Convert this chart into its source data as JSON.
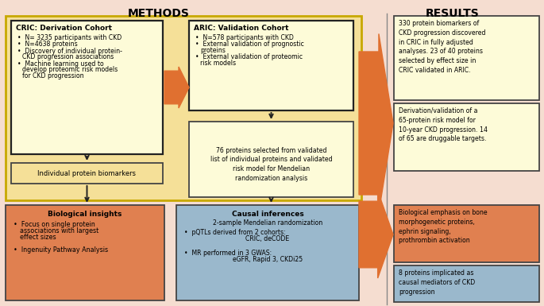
{
  "bg_color": "#f5ddd0",
  "methods_title": "METHODS",
  "results_title": "RESULTS",
  "methods_bg": "#f5e098",
  "methods_border": "#c8a800",
  "cric_box_bg": "#fdfbd8",
  "cric_box_border": "#222222",
  "aric_box_bg": "#fdfbd8",
  "aric_box_border": "#222222",
  "prot76_box_bg": "#fdfbd8",
  "prot76_box_border": "#444444",
  "biomarkers_box_bg": "#f5e098",
  "biomarkers_box_border": "#444444",
  "bio_insights_bg": "#e08050",
  "bio_insights_border": "#444444",
  "causal_box_bg": "#9ab8cc",
  "causal_box_border": "#444444",
  "results_box1_bg": "#fdfbd8",
  "results_box1_border": "#444444",
  "results_box2_bg": "#fdfbd8",
  "results_box2_border": "#444444",
  "results_box3_bg": "#e08050",
  "results_box3_border": "#444444",
  "results_box4_bg": "#9ab8cc",
  "results_box4_border": "#444444",
  "arrow_color": "#e07030",
  "dark_arrow_color": "#222222",
  "cric_title": "CRIC: Derivation Cohort",
  "cric_bullets": [
    "N= 3235 participants with CKD",
    "N=4638 proteins",
    "Discovery of individual protein-\nCKD progression associations",
    "Machine learning used to\ndevelop proteomic risk models\nfor CKD progression"
  ],
  "aric_title": "ARIC: Validation Cohort",
  "aric_bullets": [
    "N=578 participants with CKD",
    "External validation of prognostic\nproteins",
    "External validation of proteomic\nrisk models"
  ],
  "proteins76_text": "76 proteins selected from validated\nlist of individual proteins and validated\nrisk model for Mendelian\nrandomization analysis",
  "biomarkers_text": "Individual protein biomarkers",
  "bio_insights_title": "Biological insights",
  "bio_insights_bullet1": "Focus on single protein\nassociations with largest\neffect sizes",
  "bio_insights_bullet2": "Ingenuity Pathway Analysis",
  "causal_title": "Causal inferences",
  "causal_text": "2-sample Mendelian randomization",
  "causal_bullet1": "pQTLs derived from 2 cohorts:\nCRIC, deCODE",
  "causal_bullet2": "MR performed in 3 GWAS:\neGFR, Rapid 3, CKDi25",
  "result1_text": "330 protein biomarkers of\nCKD progression discovered\nin CRIC in fully adjusted\nanalyses. 23 of 40 proteins\nselected by effect size in\nCRIC validated in ARIC.",
  "result2_text": "Derivation/validation of a\n65-protein risk model for\n10-year CKD progression. 14\nof 65 are druggable targets.",
  "result3_text": "Biological emphasis on bone\nmorphogenetic proteins,\nephrin signaling,\nprothrombin activation",
  "result4_text": "8 proteins implicated as\ncausal mediators of CKD\nprogression"
}
